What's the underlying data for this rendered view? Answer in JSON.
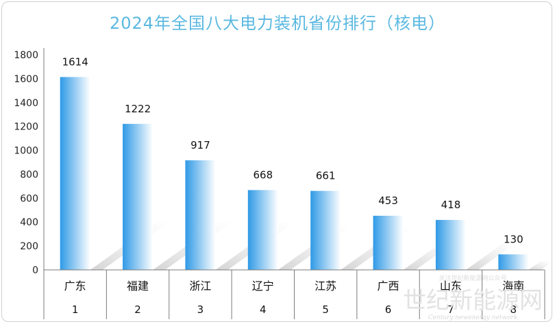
{
  "title": "2024年全国八大电力装机省份排行（核电）",
  "chart_data": {
    "type": "bar",
    "title": "2024年全国八大电力装机省份排行（核电）",
    "categories": [
      "广东",
      "福建",
      "浙江",
      "辽宁",
      "江苏",
      "广西",
      "山东",
      "海南"
    ],
    "ranks": [
      "1",
      "2",
      "3",
      "4",
      "5",
      "6",
      "7",
      "8"
    ],
    "values": [
      1614,
      1222,
      917,
      668,
      661,
      453,
      418,
      130
    ],
    "ylim": [
      0,
      1800
    ],
    "yticks": [
      0,
      200,
      400,
      600,
      800,
      1000,
      1200,
      1400,
      1600,
      1800
    ],
    "grid": false,
    "bar_gradient": [
      "#2f9ae6",
      "#ffffff"
    ]
  },
  "watermark": {
    "main": "世纪新能源网",
    "sub": "Century newenergy network",
    "note": "关注世纪新能源网公众号"
  }
}
